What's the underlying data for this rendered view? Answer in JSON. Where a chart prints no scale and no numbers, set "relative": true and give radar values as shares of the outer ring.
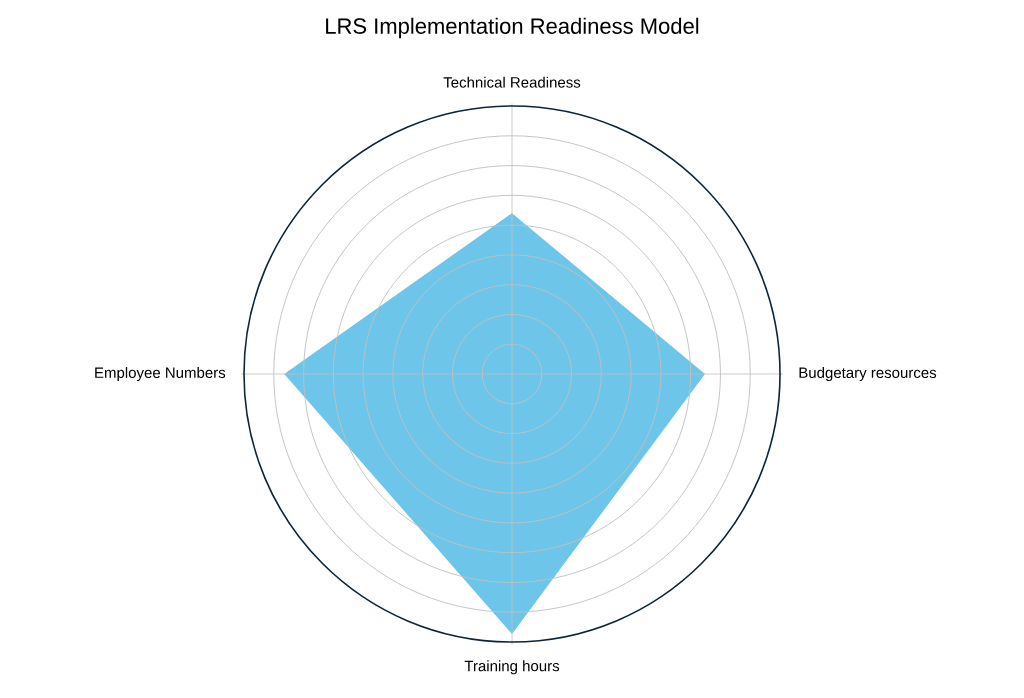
{
  "chart_data": {
    "type": "radar",
    "title": "LRS Implementation Readiness Model",
    "relative": true,
    "grid": true,
    "categories": [
      "Technical Readiness",
      "Budgetary resources",
      "Training hours",
      "Employee Numbers"
    ],
    "series": [
      {
        "color": "#6dc5ea",
        "values": [
          0.6,
          0.72,
          0.97,
          0.85
        ]
      }
    ]
  }
}
